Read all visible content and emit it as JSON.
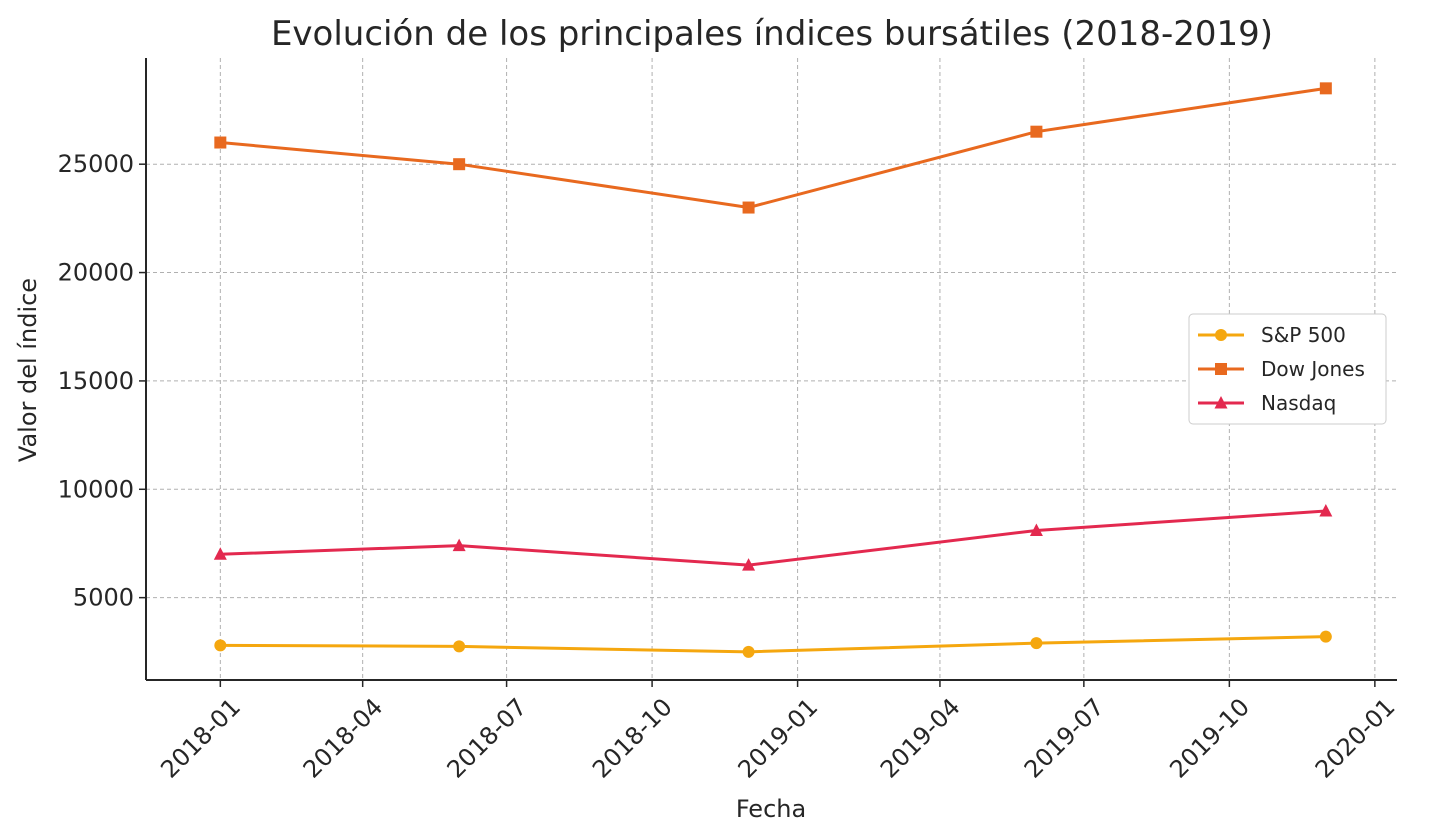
{
  "chart_data": {
    "type": "line",
    "title": "Evolución de los principales índices bursátiles (2018-2019)",
    "xlabel": "Fecha",
    "ylabel": "Valor del índice",
    "x": [
      "2018-01-01",
      "2018-06-01",
      "2018-12-01",
      "2019-06-01",
      "2019-12-01"
    ],
    "series": [
      {
        "name": "S&P 500",
        "color": "#f5a70f",
        "marker": "circle",
        "values": [
          2800,
          2750,
          2500,
          2900,
          3200
        ]
      },
      {
        "name": "Dow Jones",
        "color": "#e8691f",
        "marker": "square",
        "values": [
          26000,
          25000,
          23000,
          26500,
          28500
        ]
      },
      {
        "name": "Nasdaq",
        "color": "#e3294f",
        "marker": "triangle",
        "values": [
          7000,
          7400,
          6500,
          8100,
          9000
        ]
      }
    ],
    "x_ticks": [
      "2018-01",
      "2018-04",
      "2018-07",
      "2018-10",
      "2019-01",
      "2019-04",
      "2019-07",
      "2019-10",
      "2020-01"
    ],
    "y_ticks": [
      5000,
      10000,
      15000,
      20000,
      25000
    ],
    "xlim": [
      "2017-11-15",
      "2020-01-15"
    ],
    "ylim": [
      1200,
      29900
    ],
    "grid": true,
    "legend_position": "center-right"
  }
}
